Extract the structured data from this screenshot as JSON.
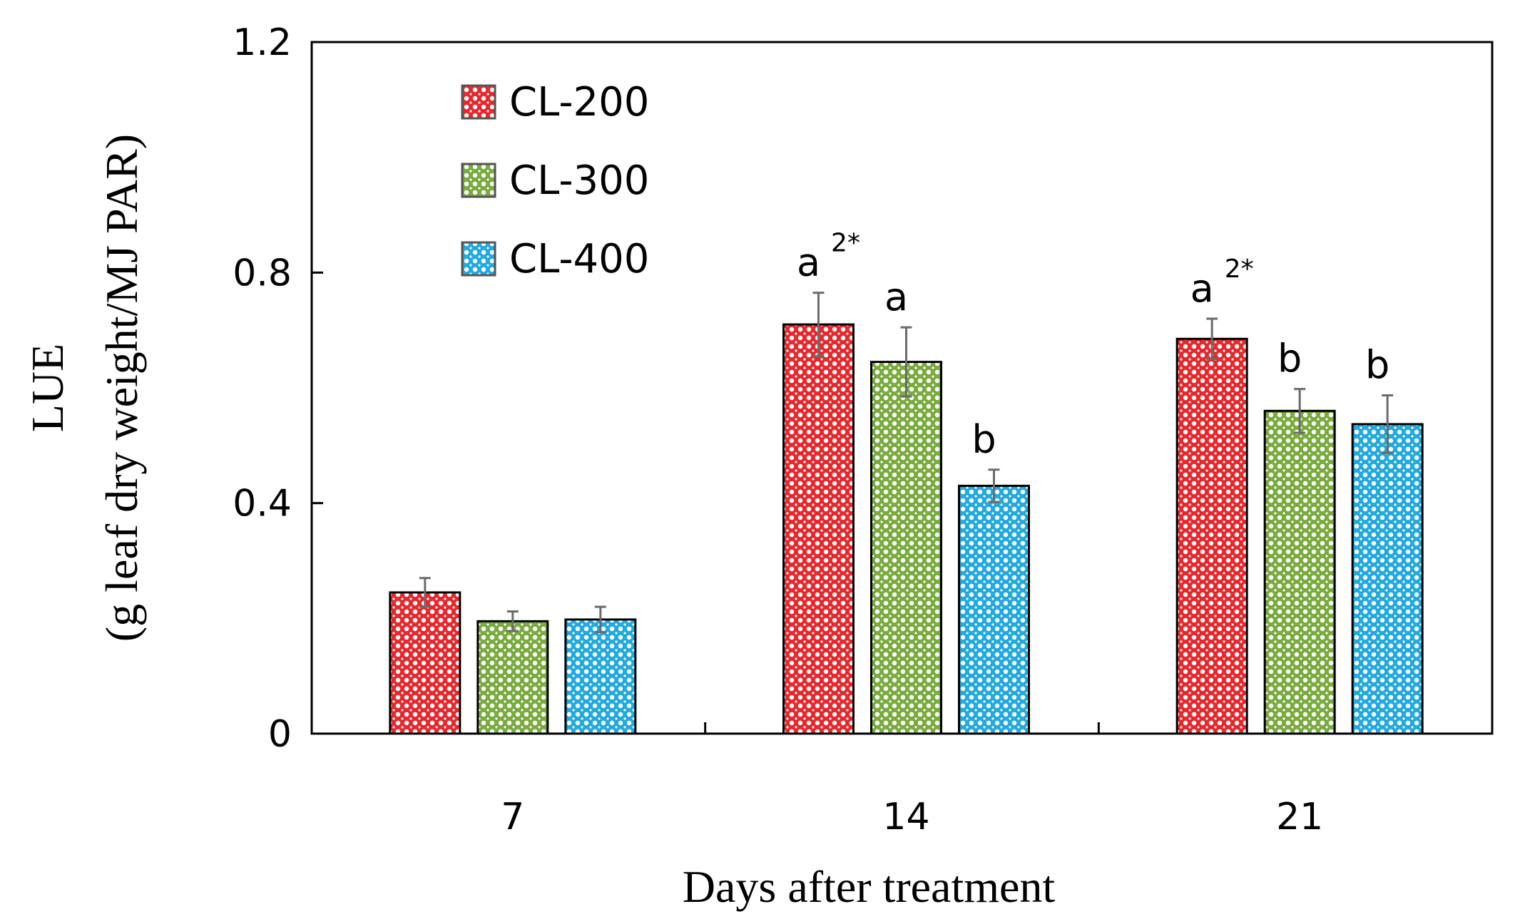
{
  "chart_data": {
    "type": "bar",
    "title": "",
    "xlabel": "Days after treatment",
    "ylabel_line1": "LUE",
    "ylabel_line2": "(g leaf dry weight/MJ PAR)",
    "categories": [
      "7",
      "14",
      "21"
    ],
    "ylim": [
      0,
      1.2
    ],
    "yticks": [
      0,
      0.4,
      0.8,
      1.2
    ],
    "ytick_labels": [
      "0",
      "0.4",
      "0.8",
      "1.2"
    ],
    "grid": false,
    "legend_position": "top-left",
    "series": [
      {
        "name": "CL-200",
        "color": "#e8272c",
        "values": [
          0.245,
          0.71,
          0.685
        ],
        "errors": [
          0.025,
          0.055,
          0.035
        ],
        "sig": [
          "",
          "a",
          "a"
        ],
        "sup": [
          "",
          "2*",
          "2*"
        ]
      },
      {
        "name": "CL-300",
        "color": "#7aab3f",
        "values": [
          0.195,
          0.645,
          0.56
        ],
        "errors": [
          0.017,
          0.06,
          0.038
        ],
        "sig": [
          "",
          "a",
          "b"
        ],
        "sup": [
          "",
          "",
          ""
        ]
      },
      {
        "name": "CL-400",
        "color": "#22a9e0",
        "values": [
          0.198,
          0.43,
          0.537
        ],
        "errors": [
          0.022,
          0.028,
          0.05
        ],
        "sig": [
          "",
          "b",
          "b"
        ],
        "sup": [
          "",
          "",
          ""
        ]
      }
    ]
  }
}
